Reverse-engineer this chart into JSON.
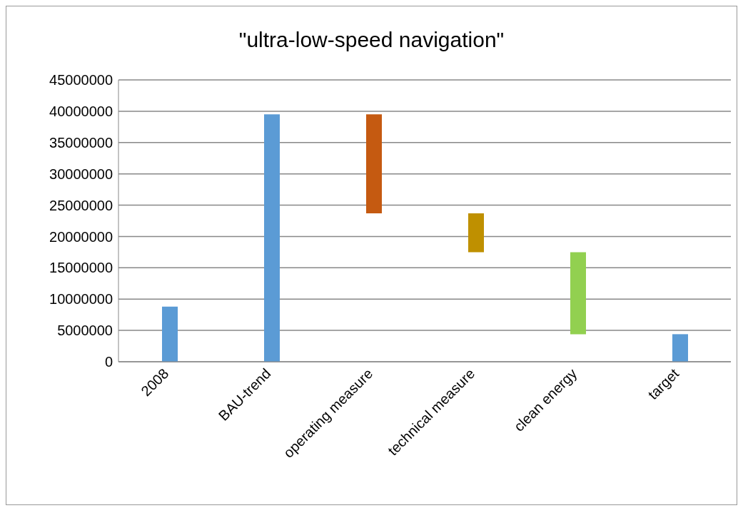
{
  "chart_data": {
    "type": "bar",
    "title": "\"ultra-low-speed navigation\"",
    "categories": [
      "2008",
      "BAU-trend",
      "operating measure",
      "technical measure",
      "clean energy",
      "target"
    ],
    "values": [
      8800000,
      39500000,
      15800000,
      6200000,
      13100000,
      4400000
    ],
    "base": [
      0,
      0,
      23700000,
      17500000,
      4400000,
      0
    ],
    "colors": [
      "#5b9bd5",
      "#5b9bd5",
      "#c55a11",
      "#bf9000",
      "#92d050",
      "#5b9bd5"
    ],
    "ylim": [
      0,
      45000000
    ],
    "yticks": [
      0,
      5000000,
      10000000,
      15000000,
      20000000,
      25000000,
      30000000,
      35000000,
      40000000,
      45000000
    ],
    "grid": "y",
    "legend": false
  }
}
